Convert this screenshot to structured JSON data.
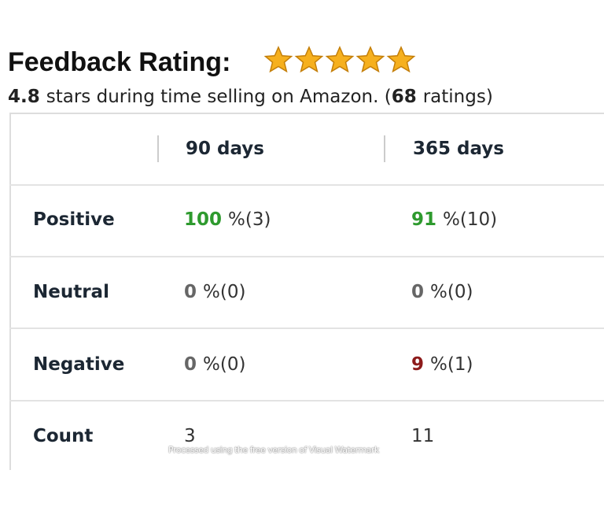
{
  "header": {
    "title": "Feedback Rating:",
    "rating": 4.8,
    "summary": "stars during time selling on Amazon. (",
    "count": 68,
    "count_suffix": "ratings)"
  },
  "table": {
    "columns": [
      "90 days",
      "365 days"
    ],
    "rows": [
      {
        "label": "Positive",
        "cells": [
          {
            "value": 100,
            "detail": "%(3)"
          },
          {
            "value": 91,
            "detail": "%(10)"
          }
        ]
      },
      {
        "label": "Neutral",
        "cells": [
          {
            "value": 0,
            "detail": "%(0)"
          },
          {
            "value": 0,
            "detail": "%(0)"
          }
        ]
      },
      {
        "label": "Negative",
        "cells": [
          {
            "value": 0,
            "detail": "%(0)"
          },
          {
            "value": 9,
            "detail": "%(1)"
          }
        ]
      },
      {
        "label": "Count",
        "cells": [
          {
            "value": 3
          },
          {
            "value": 11
          }
        ]
      }
    ]
  },
  "watermark": "Processed using the free version of Visual Watermark"
}
